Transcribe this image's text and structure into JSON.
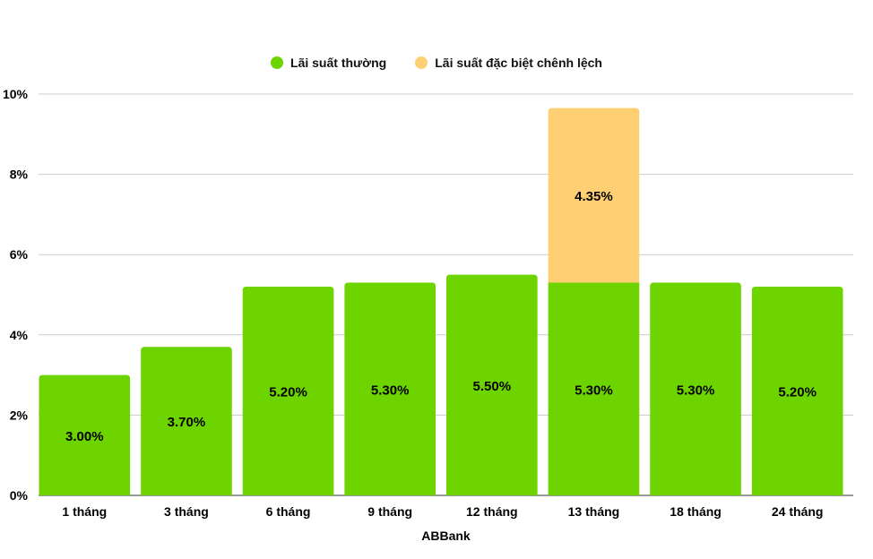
{
  "chart_data": {
    "type": "bar",
    "stacked": true,
    "categories": [
      "1 tháng",
      "3 tháng",
      "6 tháng",
      "9 tháng",
      "12 tháng",
      "13 tháng",
      "18 tháng",
      "24 tháng"
    ],
    "series": [
      {
        "name": "Lãi suất thường",
        "color": "#6dd400",
        "values": [
          3.0,
          3.7,
          5.2,
          5.3,
          5.5,
          5.3,
          5.3,
          5.2
        ],
        "labels": [
          "3.00%",
          "3.70%",
          "5.20%",
          "5.30%",
          "5.50%",
          "5.30%",
          "5.30%",
          "5.20%"
        ]
      },
      {
        "name": "Lãi suất đặc biệt chênh lệch",
        "color": "#ffd073",
        "values": [
          0,
          0,
          0,
          0,
          0,
          4.35,
          0,
          0
        ],
        "labels": [
          "",
          "",
          "",
          "",
          "",
          "4.35%",
          "",
          ""
        ]
      }
    ],
    "xlabel": "ABBank",
    "ylim": [
      0,
      10
    ],
    "yticks": [
      0,
      2,
      4,
      6,
      8,
      10
    ],
    "ytick_labels": [
      "0%",
      "2%",
      "4%",
      "6%",
      "8%",
      "10%"
    ],
    "grid": true,
    "legend_position": "top-center"
  }
}
